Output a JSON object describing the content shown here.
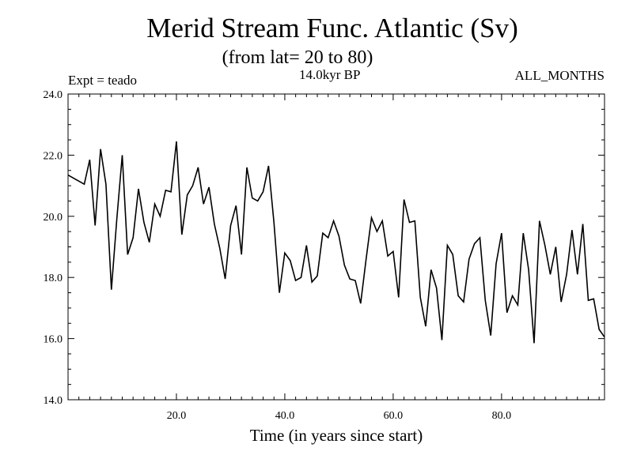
{
  "header": {
    "title": "Merid Stream Func. Atlantic (Sv)",
    "subtitle": "(from lat= 20 to 80)",
    "experiment": "Expt = teado",
    "period": "14.0kyr BP",
    "months": "ALL_MONTHS"
  },
  "chart_data": {
    "type": "line",
    "title": "Merid Stream Func. Atlantic (Sv)",
    "xlabel": "Time (in years since start)",
    "ylabel": "",
    "xlim": [
      0,
      99
    ],
    "ylim": [
      14.0,
      24.0
    ],
    "x_ticks": [
      20,
      40,
      60,
      80
    ],
    "x_tick_labels": [
      "20.0",
      "40.0",
      "60.0",
      "80.0"
    ],
    "y_ticks": [
      14,
      16,
      18,
      20,
      22,
      24
    ],
    "y_tick_labels": [
      "14.0",
      "16.0",
      "18.0",
      "20.0",
      "22.0",
      "24.0"
    ],
    "series": [
      {
        "name": "Merid Stream Func. Atlantic",
        "x": [
          0,
          1,
          2,
          3,
          4,
          5,
          6,
          7,
          8,
          9,
          10,
          11,
          12,
          13,
          14,
          15,
          16,
          17,
          18,
          19,
          20,
          21,
          22,
          23,
          24,
          25,
          26,
          27,
          28,
          29,
          30,
          31,
          32,
          33,
          34,
          35,
          36,
          37,
          38,
          39,
          40,
          41,
          42,
          43,
          44,
          45,
          46,
          47,
          48,
          49,
          50,
          51,
          52,
          53,
          54,
          55,
          56,
          57,
          58,
          59,
          60,
          61,
          62,
          63,
          64,
          65,
          66,
          67,
          68,
          69,
          70,
          71,
          72,
          73,
          74,
          75,
          76,
          77,
          78,
          79,
          80,
          81,
          82,
          83,
          84,
          85,
          86,
          87,
          88,
          89,
          90,
          91,
          92,
          93,
          94,
          95,
          96,
          97,
          98,
          99
        ],
        "values": [
          21.35,
          21.25,
          21.15,
          21.05,
          21.85,
          19.7,
          22.2,
          21.05,
          17.6,
          19.9,
          22.0,
          18.75,
          19.3,
          20.9,
          19.8,
          19.15,
          20.4,
          20.0,
          20.85,
          20.8,
          22.45,
          19.4,
          20.7,
          21.0,
          21.6,
          20.4,
          20.95,
          19.75,
          18.95,
          17.95,
          19.7,
          20.35,
          18.75,
          21.6,
          20.6,
          20.5,
          20.8,
          21.65,
          19.8,
          17.5,
          18.8,
          18.55,
          17.9,
          18.0,
          19.05,
          17.85,
          18.05,
          19.45,
          19.3,
          19.85,
          19.35,
          18.4,
          17.95,
          17.9,
          17.15,
          18.6,
          19.95,
          19.5,
          19.85,
          18.7,
          18.85,
          17.35,
          20.55,
          19.8,
          19.85,
          17.35,
          16.4,
          18.25,
          17.65,
          15.95,
          19.05,
          18.75,
          17.4,
          17.2,
          18.6,
          19.1,
          19.3,
          17.25,
          16.1,
          18.45,
          19.45,
          16.85,
          17.4,
          17.1,
          19.45,
          18.25,
          15.85,
          19.85,
          19.05,
          18.1,
          19.0,
          17.2,
          18.1,
          19.55,
          18.1,
          19.75,
          17.25,
          17.3,
          16.3,
          16.05
        ]
      }
    ]
  }
}
